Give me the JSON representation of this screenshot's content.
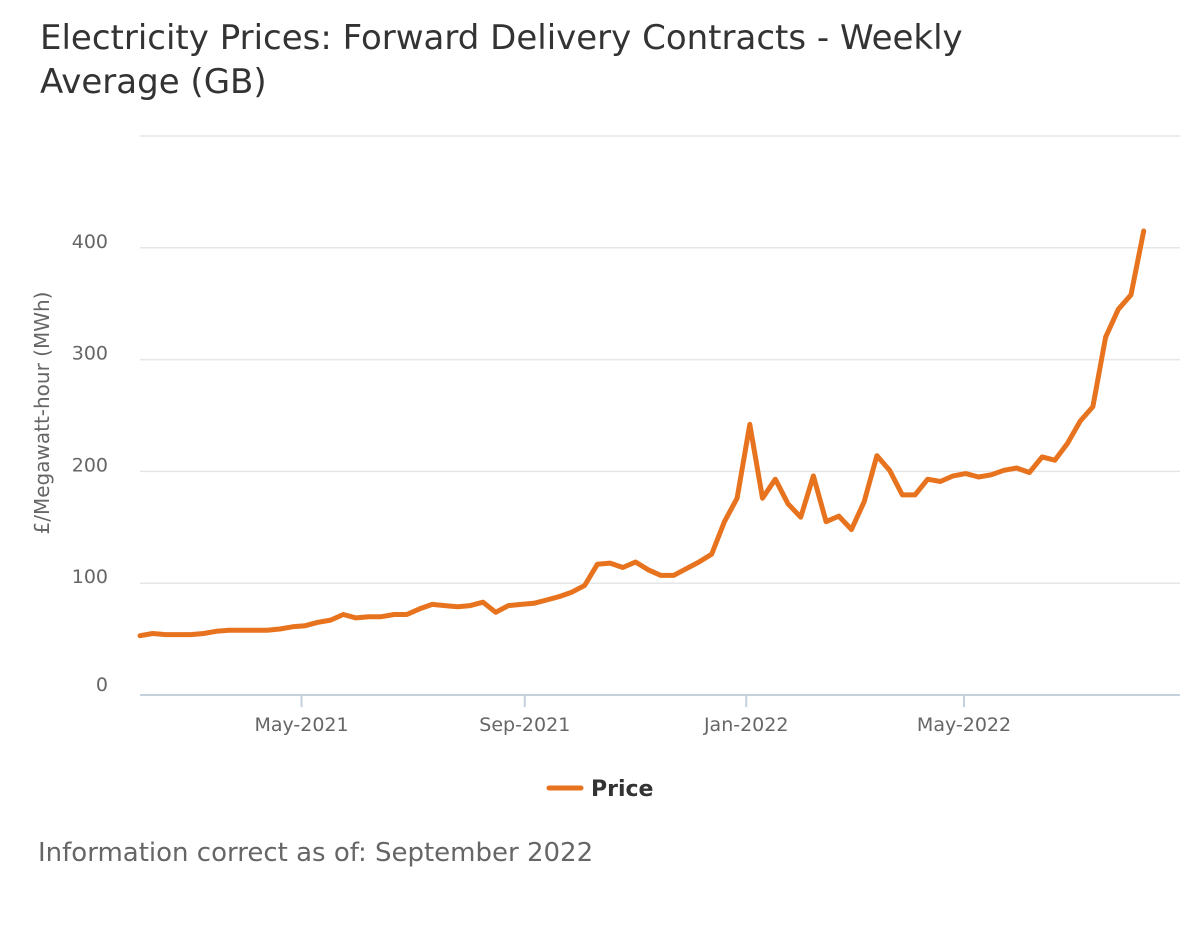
{
  "chart_data": {
    "type": "line",
    "title": "Electricity Prices: Forward Delivery Contracts - Weekly Average (GB)",
    "xlabel": "",
    "ylabel": "£/Megawatt-hour (MWh)",
    "ylim": [
      0,
      500
    ],
    "yticks": [
      0,
      100,
      200,
      300,
      400
    ],
    "y_tick_labels": [
      "0",
      "100",
      "200",
      "300",
      "400"
    ],
    "xticks": [
      {
        "label": "May-2021",
        "date": "2021-05-01"
      },
      {
        "label": "Sep-2021",
        "date": "2021-09-01"
      },
      {
        "label": "Jan-2022",
        "date": "2022-01-01"
      },
      {
        "label": "May-2022",
        "date": "2022-05-01"
      }
    ],
    "xlim": [
      "2021-02-01",
      "2022-08-28"
    ],
    "grid": true,
    "legend": "bottom-center",
    "color": "#e8731f",
    "series": [
      {
        "name": "Price",
        "points": [
          [
            "2021-02-01",
            53
          ],
          [
            "2021-02-08",
            55
          ],
          [
            "2021-02-15",
            54
          ],
          [
            "2021-02-22",
            54
          ],
          [
            "2021-03-01",
            54
          ],
          [
            "2021-03-08",
            55
          ],
          [
            "2021-03-15",
            57
          ],
          [
            "2021-03-22",
            58
          ],
          [
            "2021-03-29",
            58
          ],
          [
            "2021-04-05",
            58
          ],
          [
            "2021-04-12",
            58
          ],
          [
            "2021-04-19",
            59
          ],
          [
            "2021-04-26",
            61
          ],
          [
            "2021-05-03",
            62
          ],
          [
            "2021-05-10",
            65
          ],
          [
            "2021-05-17",
            67
          ],
          [
            "2021-05-24",
            72
          ],
          [
            "2021-05-31",
            69
          ],
          [
            "2021-06-07",
            70
          ],
          [
            "2021-06-14",
            70
          ],
          [
            "2021-06-21",
            72
          ],
          [
            "2021-06-28",
            72
          ],
          [
            "2021-07-05",
            77
          ],
          [
            "2021-07-12",
            81
          ],
          [
            "2021-07-19",
            80
          ],
          [
            "2021-07-26",
            79
          ],
          [
            "2021-08-02",
            80
          ],
          [
            "2021-08-09",
            83
          ],
          [
            "2021-08-16",
            74
          ],
          [
            "2021-08-23",
            80
          ],
          [
            "2021-08-30",
            81
          ],
          [
            "2021-09-06",
            82
          ],
          [
            "2021-09-13",
            85
          ],
          [
            "2021-09-20",
            88
          ],
          [
            "2021-09-27",
            92
          ],
          [
            "2021-10-04",
            98
          ],
          [
            "2021-10-11",
            117
          ],
          [
            "2021-10-18",
            118
          ],
          [
            "2021-10-25",
            114
          ],
          [
            "2021-11-01",
            119
          ],
          [
            "2021-11-08",
            112
          ],
          [
            "2021-11-15",
            107
          ],
          [
            "2021-11-22",
            107
          ],
          [
            "2021-11-29",
            113
          ],
          [
            "2021-12-06",
            119
          ],
          [
            "2021-12-13",
            126
          ],
          [
            "2021-12-20",
            155
          ],
          [
            "2021-12-27",
            176
          ],
          [
            "2022-01-03",
            242
          ],
          [
            "2022-01-10",
            176
          ],
          [
            "2022-01-17",
            193
          ],
          [
            "2022-01-24",
            171
          ],
          [
            "2022-01-31",
            159
          ],
          [
            "2022-02-07",
            196
          ],
          [
            "2022-02-14",
            155
          ],
          [
            "2022-02-21",
            160
          ],
          [
            "2022-02-28",
            148
          ],
          [
            "2022-03-07",
            173
          ],
          [
            "2022-03-14",
            214
          ],
          [
            "2022-03-21",
            201
          ],
          [
            "2022-03-28",
            179
          ],
          [
            "2022-04-04",
            179
          ],
          [
            "2022-04-11",
            193
          ],
          [
            "2022-04-18",
            191
          ],
          [
            "2022-04-25",
            196
          ],
          [
            "2022-05-02",
            198
          ],
          [
            "2022-05-09",
            195
          ],
          [
            "2022-05-16",
            197
          ],
          [
            "2022-05-23",
            201
          ],
          [
            "2022-05-30",
            203
          ],
          [
            "2022-06-06",
            199
          ],
          [
            "2022-06-13",
            213
          ],
          [
            "2022-06-20",
            210
          ],
          [
            "2022-06-27",
            225
          ],
          [
            "2022-07-04",
            245
          ],
          [
            "2022-07-11",
            258
          ],
          [
            "2022-07-18",
            320
          ],
          [
            "2022-07-25",
            345
          ],
          [
            "2022-08-01",
            358
          ],
          [
            "2022-08-08",
            415
          ]
        ]
      }
    ]
  },
  "footnote": "Information correct as of: September 2022"
}
